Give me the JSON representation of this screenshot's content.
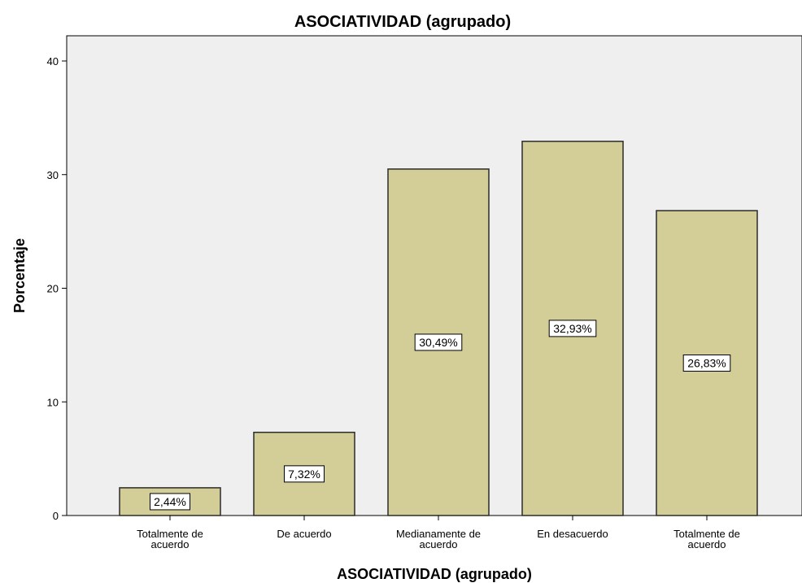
{
  "chart_data": {
    "type": "bar",
    "title": "ASOCIATIVIDAD (agrupado)",
    "xlabel": "ASOCIATIVIDAD (agrupado)",
    "ylabel": "Porcentaje",
    "categories": [
      [
        "Totalmente de",
        "acuerdo"
      ],
      [
        "De acuerdo"
      ],
      [
        "Medianamente de",
        "acuerdo"
      ],
      [
        "En desacuerdo"
      ],
      [
        "Totalmente de",
        "acuerdo"
      ]
    ],
    "values": [
      2.44,
      7.32,
      30.49,
      32.93,
      26.83
    ],
    "data_labels": [
      "2,44%",
      "7,32%",
      "30,49%",
      "32,93%",
      "26,83%"
    ],
    "ylim": [
      0,
      42
    ],
    "yticks": [
      0,
      10,
      20,
      30,
      40
    ],
    "grid": false,
    "colors": {
      "bar_fill": "#d3ce97",
      "bar_stroke": "#2b2b2b",
      "plot_background": "#efefef"
    }
  }
}
